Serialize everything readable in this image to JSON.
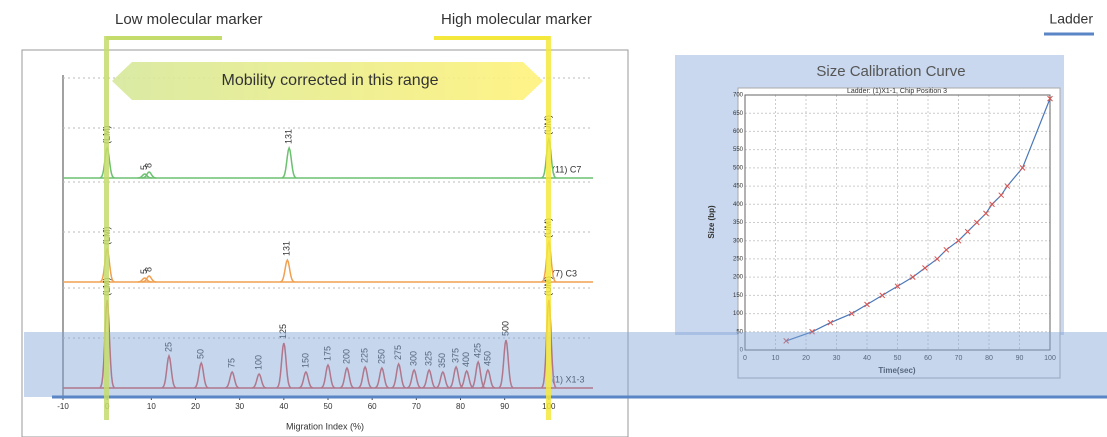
{
  "annotations": {
    "low_marker": "Low molecular marker",
    "high_marker": "High molecular marker",
    "ladder": "Ladder",
    "range": "Mobility corrected in this range"
  },
  "electropherogram": {
    "x_label": "Migration Index (%)",
    "xlim": [
      -10,
      110
    ],
    "xticks": [
      -10,
      0,
      10,
      20,
      30,
      40,
      50,
      60,
      70,
      80,
      90,
      100
    ],
    "traces": [
      {
        "name": "(11) C7",
        "color": "#6cc070",
        "peaks": [
          {
            "x": 0,
            "height": 30,
            "label": "(LM)"
          },
          {
            "x": 8.5,
            "height": 4,
            "label": "5"
          },
          {
            "x": 9.5,
            "height": 6,
            "label": "8"
          },
          {
            "x": 41.2,
            "height": 30,
            "label": "131"
          },
          {
            "x": 100,
            "height": 39,
            "label": "(UM)"
          }
        ]
      },
      {
        "name": "(7) C3",
        "color": "#f0a050",
        "peaks": [
          {
            "x": 0,
            "height": 33,
            "label": "(LM)"
          },
          {
            "x": 8.5,
            "height": 4,
            "label": "5"
          },
          {
            "x": 9.5,
            "height": 6,
            "label": "8"
          },
          {
            "x": 40.8,
            "height": 22,
            "label": "131"
          },
          {
            "x": 100,
            "height": 40,
            "label": "(UM)"
          }
        ]
      },
      {
        "name": "(1) X1-3",
        "color": "#d9534f",
        "peaks": [
          {
            "x": 0,
            "height": 88,
            "label": "(LM)"
          },
          {
            "x": 14,
            "height": 32,
            "label": "25"
          },
          {
            "x": 21.3,
            "height": 25,
            "label": "50"
          },
          {
            "x": 28.3,
            "height": 16,
            "label": "75"
          },
          {
            "x": 34.4,
            "height": 14,
            "label": "100"
          },
          {
            "x": 40,
            "height": 45,
            "label": "125"
          },
          {
            "x": 45,
            "height": 16,
            "label": "150"
          },
          {
            "x": 50,
            "height": 23,
            "label": "175"
          },
          {
            "x": 54.3,
            "height": 20,
            "label": "200"
          },
          {
            "x": 58.4,
            "height": 21,
            "label": "225"
          },
          {
            "x": 62.2,
            "height": 20,
            "label": "250"
          },
          {
            "x": 66,
            "height": 24,
            "label": "275"
          },
          {
            "x": 69.5,
            "height": 18,
            "label": "300"
          },
          {
            "x": 72.9,
            "height": 18,
            "label": "325"
          },
          {
            "x": 76,
            "height": 16,
            "label": "350"
          },
          {
            "x": 79,
            "height": 21,
            "label": "375"
          },
          {
            "x": 81.4,
            "height": 17,
            "label": "400"
          },
          {
            "x": 84,
            "height": 26,
            "label": "425"
          },
          {
            "x": 86.2,
            "height": 18,
            "label": "450"
          },
          {
            "x": 90.3,
            "height": 48,
            "label": "500"
          },
          {
            "x": 100,
            "height": 88,
            "label": "(UM)"
          }
        ]
      }
    ]
  },
  "calibration": {
    "title": "Size Calibration Curve",
    "subtitle": "Ladder: (1)X1-1, Chip Position 3",
    "x_label": "Time(sec)",
    "y_label": "Size (bp)",
    "xlim": [
      0,
      100
    ],
    "ylim": [
      0,
      700
    ],
    "xticks": [
      0,
      10,
      20,
      30,
      40,
      50,
      60,
      70,
      80,
      90,
      100
    ],
    "yticks": [
      0,
      50,
      100,
      150,
      200,
      250,
      300,
      350,
      400,
      450,
      500,
      550,
      600,
      650,
      700
    ],
    "x": [
      13.5,
      22,
      28,
      35,
      40,
      45,
      50,
      55,
      59,
      63,
      66,
      70,
      73,
      76,
      79,
      81,
      84,
      86,
      91,
      100
    ],
    "y": [
      25,
      50,
      75,
      100,
      125,
      150,
      175,
      200,
      225,
      250,
      275,
      300,
      325,
      350,
      375,
      400,
      425,
      450,
      500,
      690
    ]
  }
}
